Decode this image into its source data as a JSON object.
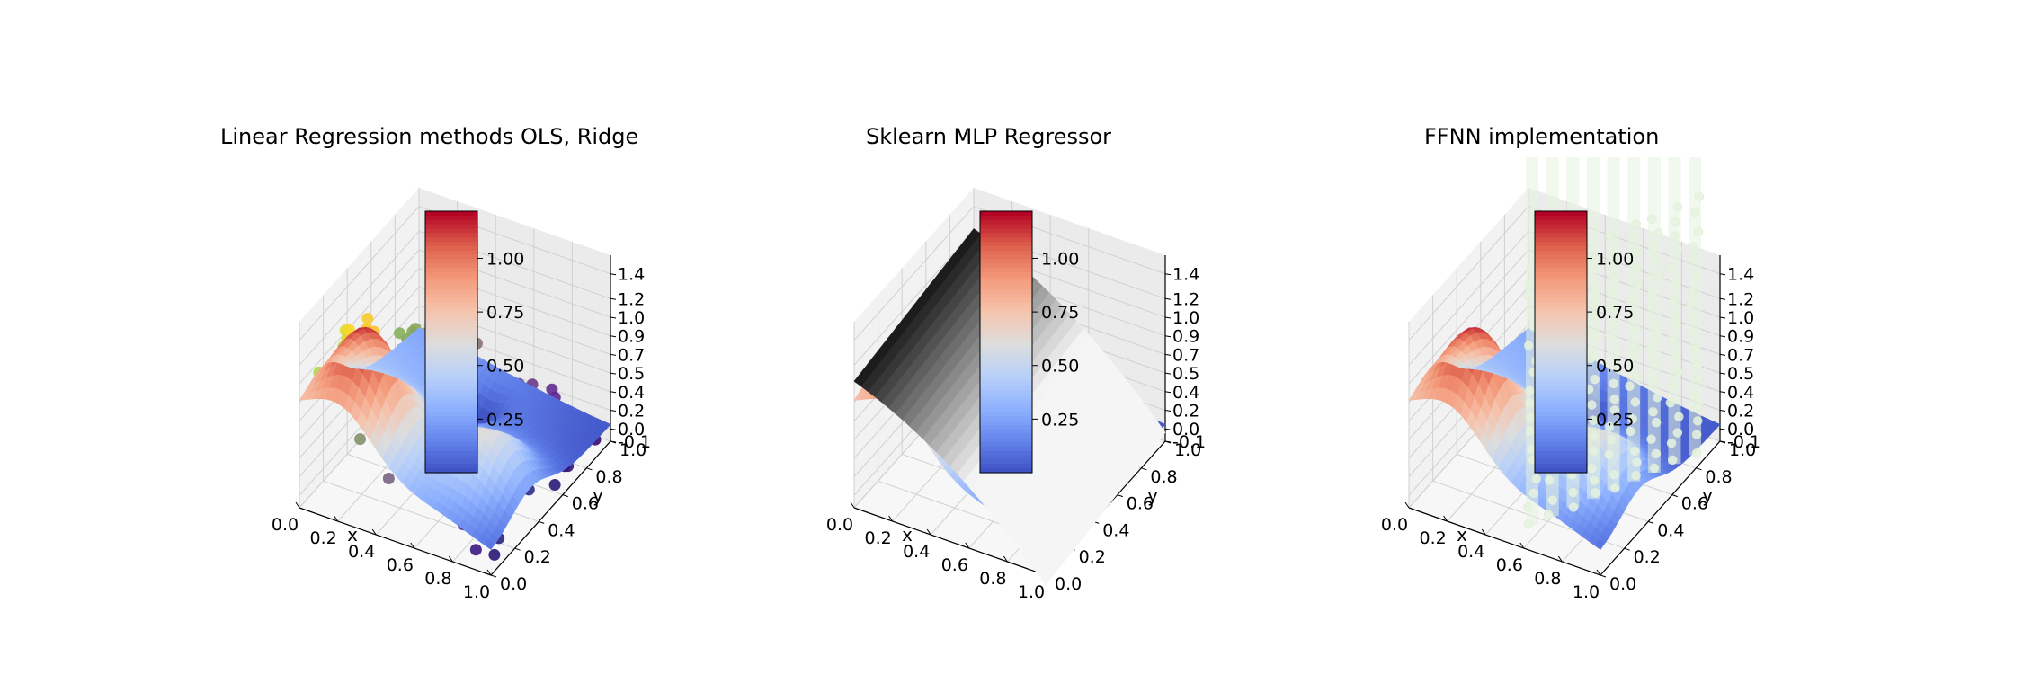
{
  "chart_data": [
    {
      "type": "surface3d",
      "title": "Linear Regression methods OLS, Ridge",
      "xlabel": "x",
      "ylabel": "y",
      "x_ticks": [
        "0.0",
        "0.2",
        "0.4",
        "0.6",
        "0.8",
        "1.0"
      ],
      "y_ticks": [
        "0.0",
        "0.2",
        "0.4",
        "0.6",
        "0.8",
        "1.0"
      ],
      "z_ticks": [
        "-0.1",
        "0.0",
        "0.2",
        "0.4",
        "0.5",
        "0.7",
        "0.9",
        "1.0",
        "1.2",
        "1.4"
      ],
      "colorbar": {
        "cmap": "coolwarm",
        "ticks": [
          "0.25",
          "0.50",
          "0.75",
          "1.00"
        ],
        "range": [
          0.0,
          1.22
        ]
      },
      "scatter_cmap": "viridis",
      "surface_cmap": "coolwarm",
      "grid": true
    },
    {
      "type": "surface3d",
      "title": "Sklearn MLP Regressor",
      "xlabel": "x",
      "ylabel": "y",
      "x_ticks": [
        "0.0",
        "0.2",
        "0.4",
        "0.6",
        "0.8",
        "1.0"
      ],
      "y_ticks": [
        "0.0",
        "0.2",
        "0.4",
        "0.6",
        "0.8",
        "1.0"
      ],
      "z_ticks": [
        "-0.1",
        "0.0",
        "0.2",
        "0.4",
        "0.5",
        "0.7",
        "0.9",
        "1.0",
        "1.2",
        "1.4"
      ],
      "colorbar": {
        "cmap": "coolwarm",
        "ticks": [
          "0.25",
          "0.50",
          "0.75",
          "1.00"
        ],
        "range": [
          0.0,
          1.22
        ]
      },
      "prediction_cmap": "gray",
      "surface_cmap": "coolwarm",
      "grid": true
    },
    {
      "type": "surface3d",
      "title": "FFNN implementation",
      "xlabel": "x",
      "ylabel": "y",
      "x_ticks": [
        "0.0",
        "0.2",
        "0.4",
        "0.6",
        "0.8",
        "1.0"
      ],
      "y_ticks": [
        "0.0",
        "0.2",
        "0.4",
        "0.6",
        "0.8",
        "1.0"
      ],
      "z_ticks": [
        "-0.1",
        "0.0",
        "0.2",
        "0.4",
        "0.5",
        "0.7",
        "0.9",
        "1.0",
        "1.2",
        "1.4"
      ],
      "colorbar": {
        "cmap": "coolwarm",
        "ticks": [
          "0.25",
          "0.50",
          "0.75",
          "1.00"
        ],
        "range": [
          0.0,
          1.22
        ]
      },
      "scatter_color": "#e6f2df",
      "surface_cmap": "coolwarm",
      "grid": true
    }
  ]
}
